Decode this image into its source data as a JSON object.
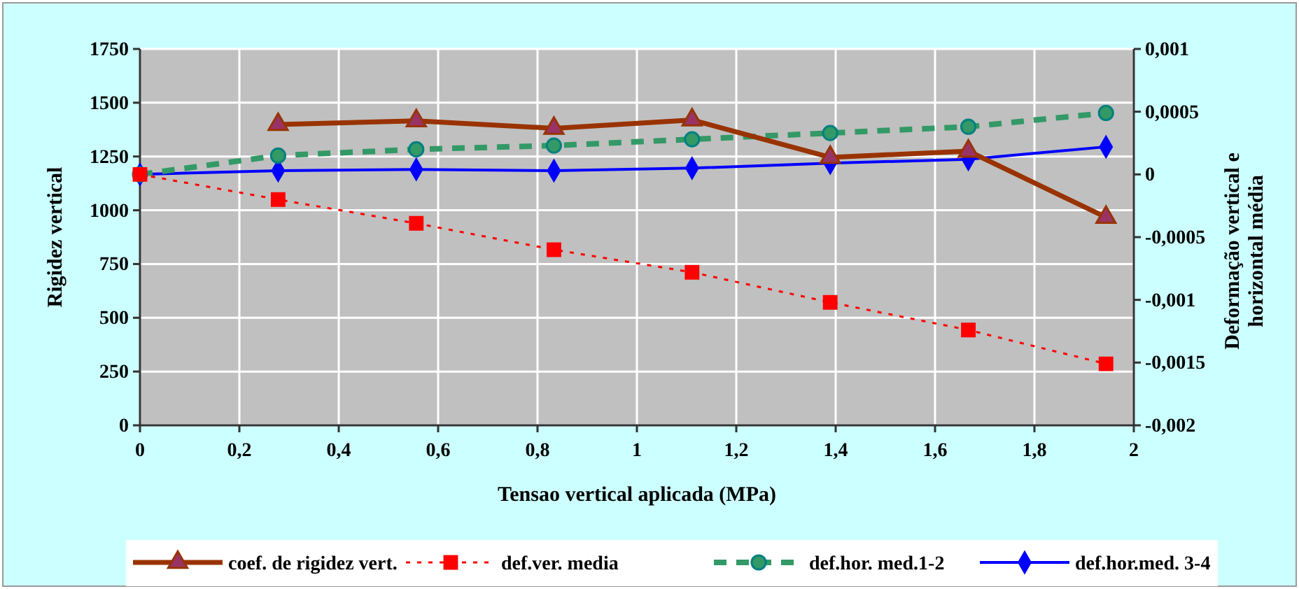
{
  "chart_data": {
    "type": "line",
    "xlabel": "Tensao vertical aplicada (MPa)",
    "ylabel": "Rigidez vertical",
    "y2label": "Deformação vertical e horizontal média",
    "x": [
      0,
      0.278,
      0.556,
      0.833,
      1.111,
      1.389,
      1.667,
      1.944
    ],
    "xlim": [
      0,
      2
    ],
    "xticks": [
      0,
      {
        "value": 0.2,
        "label": "0,2"
      },
      {
        "value": 0.4,
        "label": "0,4"
      },
      {
        "value": 0.6,
        "label": "0,6"
      },
      {
        "value": 0.8,
        "label": "0,8"
      },
      1,
      {
        "value": 1.2,
        "label": "1,2"
      },
      {
        "value": 1.4,
        "label": "1,4"
      },
      {
        "value": 1.6,
        "label": "1,6"
      },
      {
        "value": 1.8,
        "label": "1,8"
      },
      2
    ],
    "ylim": [
      0,
      1750
    ],
    "yticks": [
      0,
      250,
      500,
      750,
      1000,
      1250,
      1500,
      1750
    ],
    "y2lim": [
      -0.002,
      0.001
    ],
    "y2ticks": [
      {
        "value": -0.002,
        "label": "-0,002"
      },
      {
        "value": -0.0015,
        "label": "-0,0015"
      },
      {
        "value": -0.001,
        "label": "-0,001"
      },
      {
        "value": -0.0005,
        "label": "-0,0005"
      },
      0,
      {
        "value": 0.0005,
        "label": "0,0005"
      },
      {
        "value": 0.001,
        "label": "0,001"
      }
    ],
    "grid": true,
    "legend": "bottom",
    "series": [
      {
        "name": "coef. de rigidez vert.",
        "color": "#993300",
        "marker": "triangle",
        "line_style": "solid",
        "values": [
          null,
          1399,
          1416,
          1381,
          1420,
          1246,
          1275,
          967
        ]
      },
      {
        "name": "def.ver. media",
        "color": "#ff0000",
        "marker": "square",
        "line_style": "dotted",
        "axis": "y2",
        "values": [
          0,
          -0.0002,
          -0.00039,
          -0.0006,
          -0.00078,
          -0.00102,
          -0.00124,
          -0.00151
        ]
      },
      {
        "name": "def.hor. med.1-2",
        "color": "#339966",
        "marker": "circle",
        "line_style": "dashed",
        "axis": "y2",
        "values": [
          0,
          0.00015,
          0.0002,
          0.00023,
          0.00028,
          0.00033,
          0.00038,
          0.00049
        ]
      },
      {
        "name": "def.hor.med. 3-4",
        "color": "#0000ff",
        "marker": "diamond",
        "line_style": "solid",
        "axis": "y2",
        "values": [
          0,
          3e-05,
          4e-05,
          3e-05,
          5e-05,
          9e-05,
          0.00012,
          0.00022
        ]
      }
    ]
  }
}
